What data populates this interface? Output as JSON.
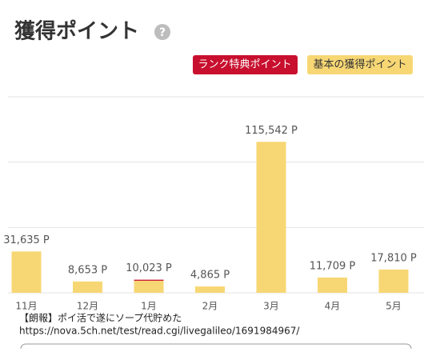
{
  "header": {
    "title": "獲得ポイント",
    "help": "?"
  },
  "chart_data": {
    "type": "bar",
    "stacked": true,
    "categories": [
      "11月",
      "12月",
      "1月",
      "2月",
      "3月",
      "4月",
      "5月"
    ],
    "series": [
      {
        "name": "基本の獲得ポイント",
        "color": "#f7d774",
        "values": [
          31635,
          8653,
          9223,
          4865,
          115542,
          11709,
          17810
        ]
      },
      {
        "name": "ランク特典ポイント",
        "color": "#c8102e",
        "values": [
          0,
          0,
          800,
          0,
          0,
          0,
          0
        ]
      }
    ],
    "values": [
      31635,
      8653,
      10023,
      4865,
      115542,
      11709,
      17810
    ],
    "value_labels": [
      "31,635 P",
      "8,653 P",
      "10,023 P",
      "4,865 P",
      "115,542 P",
      "11,709 P",
      "17,810 P"
    ],
    "ylim": [
      0,
      150000
    ],
    "yticks": [
      0,
      50000,
      100000,
      150000
    ],
    "grid": true
  },
  "watermark": [
    "【朗報】ポイ活で遂にソープ代貯めた",
    "https://nova.5ch.net/test/read.cgi/livegalileo/1691984967/"
  ]
}
